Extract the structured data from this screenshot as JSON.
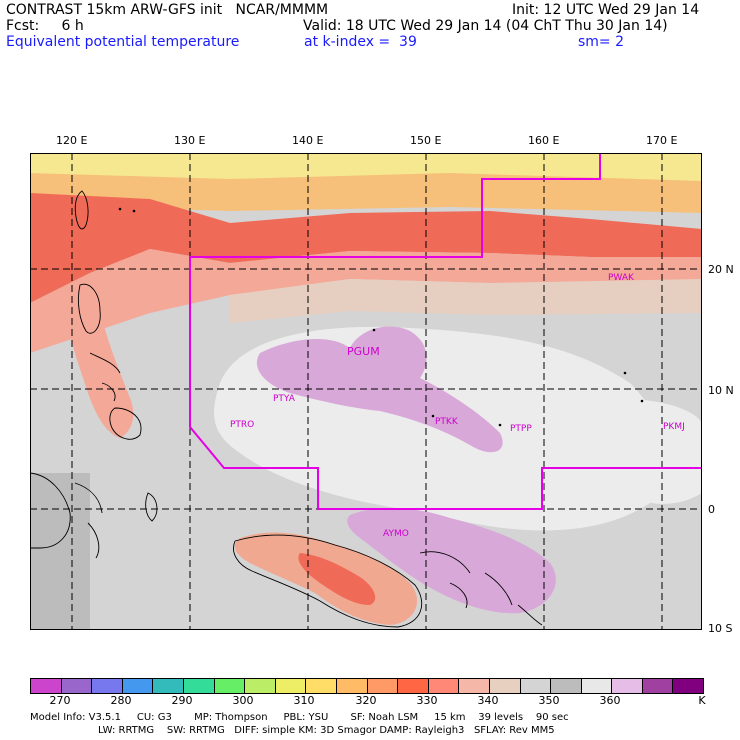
{
  "header": {
    "line1_left": "CONTRAST 15km ARW-GFS init   NCAR/MMMM",
    "line1_right": "Init: 12 UTC Wed 29 Jan 14",
    "line2_left": "Fcst:     6 h",
    "line2_right": "Valid: 18 UTC Wed 29 Jan 14 (04 ChT Thu 30 Jan 14)",
    "line3_left": "Equivalent potential temperature",
    "line3_mid": "at k-index =  39",
    "line3_right": "sm= 2"
  },
  "map": {
    "lon_labels": [
      "120 E",
      "130 E",
      "140 E",
      "150 E",
      "160 E",
      "170 E"
    ],
    "lat_labels": [
      "20 N",
      "10 N",
      "0",
      "10 S"
    ],
    "stations": [
      "PWAK",
      "PGUM",
      "PTYA",
      "PTRO",
      "PTKK",
      "PTPP",
      "PKMJ",
      "AYMO"
    ],
    "colors": {
      "domain_outline": "#e600e6",
      "warm_band": "#f07060",
      "deep_warm": "#f05a48",
      "yellow": "#f5e890",
      "gray": "#c8c8c8",
      "light": "#ececec",
      "lilac": "#d8a8d8"
    }
  },
  "legend": {
    "tick_labels": [
      "270",
      "280",
      "290",
      "300",
      "310",
      "320",
      "330",
      "340",
      "350",
      "360",
      "K"
    ],
    "colors": [
      "#cc44cc",
      "#9966cc",
      "#7777ee",
      "#4499ee",
      "#33bbbb",
      "#33dd99",
      "#66ee66",
      "#bbee66",
      "#eeee66",
      "#ffdd66",
      "#ffbb66",
      "#ff9966",
      "#ff6644",
      "#ff8877",
      "#f5b8a8",
      "#e8d0c0",
      "#d4d4d4",
      "#bcbcbc",
      "#e8e8e8",
      "#e6bde6",
      "#a040a0",
      "#800080"
    ]
  },
  "info": {
    "line1": "Model Info: V3.5.1     CU: G3       MP: Thompson     PBL: YSU       SF: Noah LSM     15 km    39 levels    90 sec",
    "line2": "LW: RRTMG    SW: RRTMG   DIFF: simple KM: 3D Smagor DAMP: Rayleigh3   SFLAY: Rev MM5"
  }
}
